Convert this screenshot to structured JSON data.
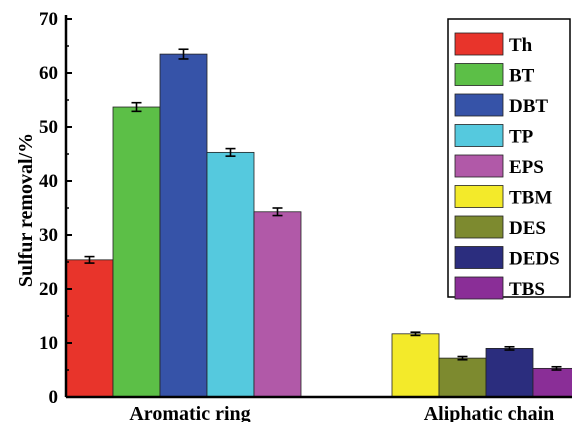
{
  "chart_data": {
    "type": "bar",
    "ylabel": "Sulfur removal/%",
    "xlabel": "",
    "ylim": [
      0,
      70
    ],
    "yticks": [
      "0",
      "10",
      "20",
      "30",
      "40",
      "50",
      "60",
      "70"
    ],
    "categories": [
      "Aromatic ring",
      "Aliphatic chain"
    ],
    "legend_position": "top-right",
    "series": [
      {
        "name": "Th",
        "group": "Aromatic ring",
        "value": 25.4,
        "error": 0.6,
        "color": "#e8342b"
      },
      {
        "name": "BT",
        "group": "Aromatic ring",
        "value": 53.7,
        "error": 0.8,
        "color": "#5cbf47"
      },
      {
        "name": "DBT",
        "group": "Aromatic ring",
        "value": 63.5,
        "error": 0.9,
        "color": "#3653a8"
      },
      {
        "name": "TP",
        "group": "Aromatic ring",
        "value": 45.3,
        "error": 0.7,
        "color": "#55c9de"
      },
      {
        "name": "EPS",
        "group": "Aromatic ring",
        "value": 34.3,
        "error": 0.7,
        "color": "#b159a8"
      },
      {
        "name": "TBM",
        "group": "Aliphatic chain",
        "value": 11.7,
        "error": 0.3,
        "color": "#f3ea2a"
      },
      {
        "name": "DES",
        "group": "Aliphatic chain",
        "value": 7.2,
        "error": 0.3,
        "color": "#7d8a2f"
      },
      {
        "name": "DEDS",
        "group": "Aliphatic chain",
        "value": 9.0,
        "error": 0.3,
        "color": "#2b2d7e"
      },
      {
        "name": "TBS",
        "group": "Aliphatic chain",
        "value": 5.3,
        "error": 0.3,
        "color": "#8a2e97"
      }
    ]
  }
}
